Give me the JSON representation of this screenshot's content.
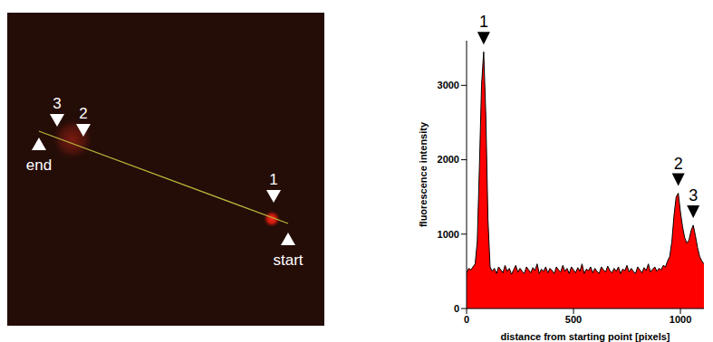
{
  "image_panel": {
    "peak_markers": [
      "1",
      "2",
      "3"
    ],
    "line_start": "start",
    "line_end": "end"
  },
  "chart_data": {
    "type": "area",
    "x_label": "distance from starting point [pixels]",
    "y_label": "fluorescence intensity",
    "x": [
      0,
      10,
      20,
      30,
      40,
      50,
      60,
      70,
      80,
      90,
      100,
      110,
      120,
      130,
      140,
      150,
      160,
      170,
      180,
      190,
      200,
      210,
      220,
      230,
      240,
      250,
      260,
      270,
      280,
      290,
      300,
      310,
      320,
      330,
      340,
      350,
      360,
      370,
      380,
      390,
      400,
      410,
      420,
      430,
      440,
      450,
      460,
      470,
      480,
      490,
      500,
      510,
      520,
      530,
      540,
      550,
      560,
      570,
      580,
      590,
      600,
      610,
      620,
      630,
      640,
      650,
      660,
      670,
      680,
      690,
      700,
      710,
      720,
      730,
      740,
      750,
      760,
      770,
      780,
      790,
      800,
      810,
      820,
      830,
      840,
      850,
      860,
      870,
      880,
      890,
      900,
      910,
      920,
      930,
      940,
      950,
      960,
      970,
      980,
      990,
      1000,
      1010,
      1020,
      1030,
      1040,
      1050,
      1060,
      1070,
      1080,
      1090,
      1100,
      1110
    ],
    "values": [
      480,
      540,
      520,
      560,
      600,
      900,
      1900,
      3000,
      3450,
      2600,
      1200,
      560,
      500,
      540,
      470,
      560,
      520,
      480,
      580,
      500,
      540,
      460,
      520,
      580,
      490,
      540,
      500,
      470,
      560,
      520,
      480,
      550,
      510,
      600,
      470,
      530,
      500,
      560,
      480,
      540,
      510,
      470,
      560,
      520,
      490,
      580,
      500,
      540,
      470,
      560,
      520,
      480,
      550,
      500,
      600,
      470,
      530,
      510,
      560,
      480,
      540,
      500,
      470,
      560,
      520,
      490,
      570,
      510,
      480,
      540,
      500,
      560,
      470,
      530,
      510,
      580,
      490,
      540,
      500,
      470,
      560,
      520,
      480,
      550,
      510,
      600,
      490,
      530,
      560,
      500,
      540,
      520,
      580,
      560,
      640,
      700,
      900,
      1250,
      1500,
      1550,
      1300,
      1100,
      950,
      880,
      920,
      1050,
      1120,
      980,
      820,
      700,
      640,
      600
    ],
    "color": "#ff0000",
    "xlim": [
      0,
      1110
    ],
    "ylim": [
      0,
      3600
    ],
    "xticks": [
      0,
      500,
      1000
    ],
    "yticks": [
      0,
      1000,
      2000,
      3000
    ],
    "grid": false,
    "annotations": [
      {
        "label": "1",
        "x": 80
      },
      {
        "label": "2",
        "x": 990
      },
      {
        "label": "3",
        "x": 1060
      }
    ]
  }
}
